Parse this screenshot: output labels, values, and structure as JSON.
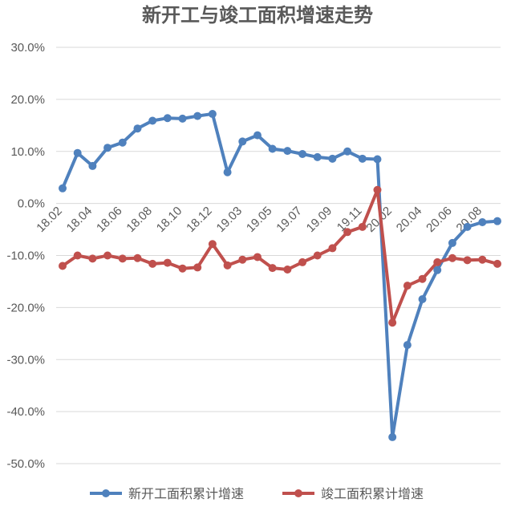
{
  "chart_data": {
    "type": "line",
    "title": "新开工与竣工面积增速走势",
    "xlabel": "",
    "ylabel": "",
    "ylim": [
      -50,
      30
    ],
    "yticks": [
      "30.0%",
      "20.0%",
      "10.0%",
      "0.0%",
      "-10.0%",
      "-20.0%",
      "-30.0%",
      "-40.0%",
      "-50.0%"
    ],
    "ytick_values": [
      30,
      20,
      10,
      0,
      -10,
      -20,
      -30,
      -40,
      -50
    ],
    "x": [
      "18.02",
      "18.03",
      "18.04",
      "18.05",
      "18.06",
      "18.07",
      "18.08",
      "18.09",
      "18.10",
      "18.11",
      "18.12",
      "19.02",
      "19.03",
      "19.04",
      "19.05",
      "19.06",
      "19.07",
      "19.08",
      "19.09",
      "19.10",
      "19.11",
      "19.12",
      "20.02",
      "20.03",
      "20.04",
      "20.05",
      "20.06",
      "20.07",
      "20.08",
      "20.09"
    ],
    "xtick_labels": [
      "18.02",
      "18.04",
      "18.06",
      "18.08",
      "18.10",
      "18.12",
      "19.03",
      "19.05",
      "19.07",
      "19.09",
      "19.11",
      "20.02",
      "20.04",
      "20.06",
      "20.08"
    ],
    "xtick_indices": [
      0,
      2,
      4,
      6,
      8,
      10,
      12,
      14,
      16,
      18,
      20,
      22,
      24,
      26,
      28
    ],
    "grid": true,
    "legend_position": "bottom",
    "series": [
      {
        "name": "新开工面积累计增速",
        "color": "#4f81bd",
        "values": [
          2.9,
          9.7,
          7.2,
          10.7,
          11.7,
          14.4,
          15.9,
          16.4,
          16.3,
          16.8,
          17.2,
          6.0,
          11.9,
          13.1,
          10.5,
          10.1,
          9.5,
          8.9,
          8.6,
          10.0,
          8.6,
          8.5,
          -44.9,
          -27.2,
          -18.4,
          -12.8,
          -7.6,
          -4.5,
          -3.6,
          -3.4
        ]
      },
      {
        "name": "竣工面积累计增速",
        "color": "#c0504d",
        "values": [
          -12.0,
          -10.0,
          -10.6,
          -10.0,
          -10.6,
          -10.5,
          -11.6,
          -11.4,
          -12.5,
          -12.3,
          -7.8,
          -11.9,
          -10.8,
          -10.3,
          -12.4,
          -12.7,
          -11.3,
          -10.0,
          -8.6,
          -5.5,
          -4.5,
          2.6,
          -22.9,
          -15.8,
          -14.5,
          -11.3,
          -10.5,
          -10.9,
          -10.8,
          -11.6
        ]
      }
    ]
  }
}
